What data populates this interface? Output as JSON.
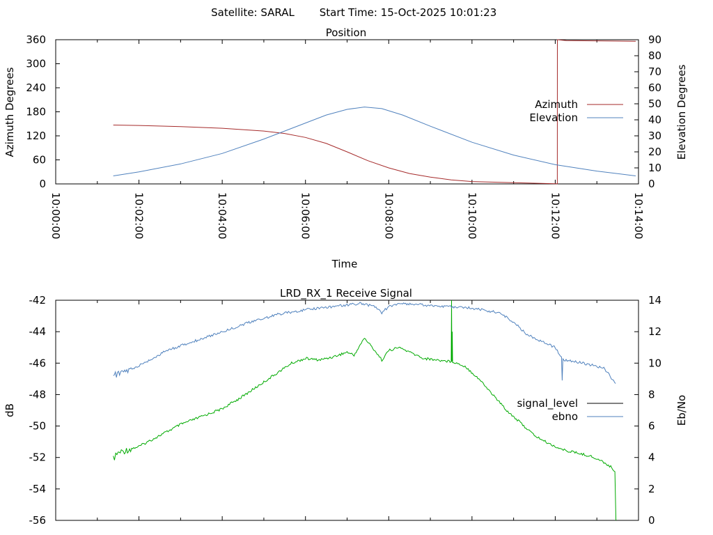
{
  "header": {
    "satellite": "Satellite: SARAL",
    "start_time": "Start Time: 15-Oct-2025 10:01:23"
  },
  "chart_data": [
    {
      "type": "line",
      "title": "Position",
      "xlabel": "Time",
      "ylabel": "Azimuth Degrees",
      "y2label": "Elevation Degrees",
      "xlim": [
        0,
        840
      ],
      "ylim": [
        0,
        360
      ],
      "y2lim": [
        0,
        90
      ],
      "x_ticks": [
        "10:00:00",
        "10:02:00",
        "10:04:00",
        "10:06:00",
        "10:08:00",
        "10:10:00",
        "10:12:00",
        "10:14:00"
      ],
      "y_ticks": [
        "0",
        "60",
        "120",
        "180",
        "240",
        "300",
        "360"
      ],
      "y2_ticks": [
        "0",
        "10",
        "20",
        "30",
        "40",
        "50",
        "60",
        "70",
        "80",
        "90"
      ],
      "legend": "right",
      "series": [
        {
          "name": "Azimuth",
          "color": "#a52a2a",
          "axis": "left",
          "x": [
            83,
            120,
            180,
            240,
            300,
            330,
            360,
            390,
            420,
            450,
            480,
            510,
            540,
            570,
            600,
            660,
            720,
            723,
            723.1,
            736,
            836
          ],
          "y": [
            147,
            146,
            143,
            139,
            132,
            126,
            116,
            101,
            80,
            58,
            40,
            26,
            17,
            10,
            6,
            3,
            0.5,
            0.3,
            360,
            358,
            356
          ]
        },
        {
          "name": "Elevation",
          "color": "#4f81bd",
          "axis": "right",
          "x": [
            83,
            120,
            180,
            240,
            300,
            360,
            390,
            420,
            445,
            470,
            500,
            540,
            600,
            660,
            720,
            780,
            836
          ],
          "y": [
            5,
            7.5,
            12.5,
            19,
            28,
            38,
            43,
            46.5,
            48,
            47,
            43,
            36,
            26,
            18,
            12,
            8,
            5
          ]
        }
      ]
    },
    {
      "type": "line",
      "title": "LRD_RX_1 Receive Signal",
      "ylabel": "dB",
      "y2label": "Eb/No",
      "xlim": [
        0,
        840
      ],
      "ylim": [
        -56,
        -42
      ],
      "y2lim": [
        0,
        14
      ],
      "y_ticks": [
        "-56",
        "-54",
        "-52",
        "-50",
        "-48",
        "-46",
        "-44",
        "-42"
      ],
      "y2_ticks": [
        "0",
        "2",
        "4",
        "6",
        "8",
        "10",
        "12",
        "14"
      ],
      "legend": "right",
      "series": [
        {
          "name": "signal_level",
          "color": "#00aa00",
          "axis": "left",
          "x": [
            83,
            90,
            120,
            150,
            180,
            210,
            240,
            270,
            300,
            320,
            340,
            360,
            380,
            400,
            420,
            430,
            445,
            460,
            470,
            480,
            495,
            510,
            530,
            550,
            570,
            570.5,
            571,
            571.5,
            572,
            590,
            610,
            630,
            650,
            670,
            690,
            710,
            730,
            750,
            770,
            790,
            800,
            806,
            807,
            807.5
          ],
          "y": [
            -52.1,
            -51.7,
            -51.3,
            -50.6,
            -49.9,
            -49.4,
            -48.9,
            -48.1,
            -47.2,
            -46.6,
            -46.0,
            -45.7,
            -45.8,
            -45.6,
            -45.3,
            -45.5,
            -44.4,
            -45.2,
            -45.8,
            -45.2,
            -45.0,
            -45.3,
            -45.7,
            -45.8,
            -45.9,
            -42.0,
            -45.9,
            -44.0,
            -45.9,
            -46.2,
            -47.0,
            -48.0,
            -49.0,
            -49.8,
            -50.6,
            -51.1,
            -51.5,
            -51.7,
            -51.9,
            -52.3,
            -52.6,
            -52.9,
            -55.0,
            -56.0
          ]
        },
        {
          "name": "ebno",
          "color": "#4f81bd",
          "axis": "right",
          "x": [
            83,
            110,
            140,
            160,
            200,
            240,
            280,
            320,
            360,
            400,
            440,
            460,
            470,
            480,
            500,
            530,
            560,
            600,
            640,
            660,
            680,
            720,
            729,
            730,
            731,
            760,
            790,
            807
          ],
          "y": [
            9.2,
            9.6,
            10.3,
            10.8,
            11.4,
            12.0,
            12.6,
            13.1,
            13.4,
            13.6,
            13.8,
            13.6,
            13.2,
            13.6,
            13.8,
            13.7,
            13.6,
            13.5,
            13.2,
            12.6,
            11.8,
            11.0,
            10.4,
            8.9,
            10.2,
            10.0,
            9.7,
            8.7
          ]
        }
      ]
    }
  ]
}
